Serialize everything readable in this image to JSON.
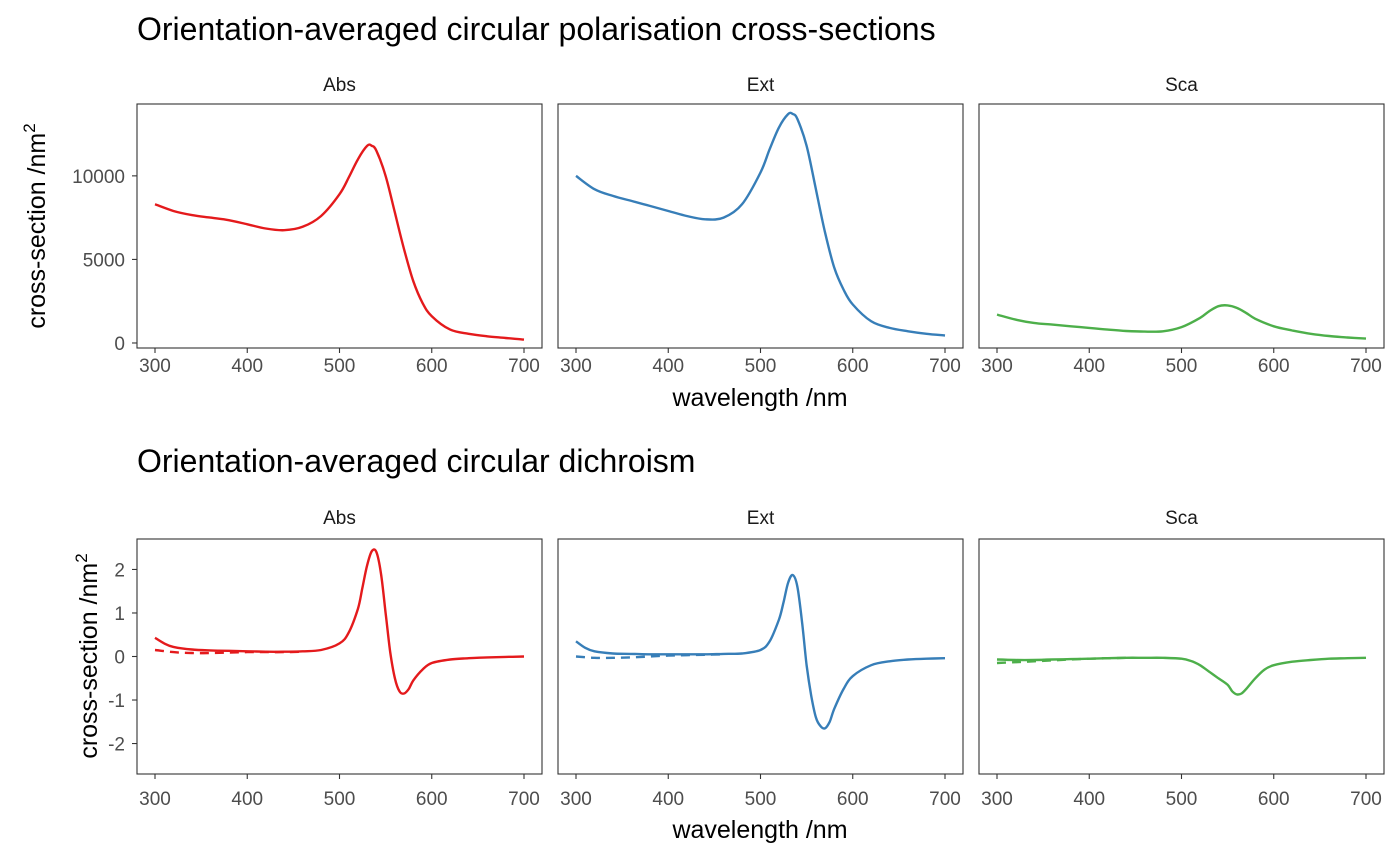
{
  "chart_data": [
    {
      "type": "line",
      "title": "Orientation-averaged circular polarisation cross-sections",
      "xlabel": "wavelength /nm",
      "ylabel": "cross-section /nm",
      "ylabel_sup": "2",
      "xlim": [
        300,
        700
      ],
      "ylim": [
        -300,
        14300
      ],
      "x_ticks": [
        300,
        400,
        500,
        600,
        700
      ],
      "y_ticks": [
        0,
        5000,
        10000
      ],
      "grid": false,
      "panels": [
        {
          "label": "Abs",
          "color": "#E41A1C",
          "series": [
            {
              "linetype": "solid",
              "x": [
                300,
                320,
                340,
                360,
                380,
                400,
                420,
                440,
                460,
                480,
                500,
                510,
                520,
                530,
                535,
                540,
                550,
                560,
                570,
                580,
                590,
                600,
                620,
                640,
                660,
                680,
                700
              ],
              "y": [
                8300,
                7900,
                7650,
                7500,
                7350,
                7100,
                6850,
                6750,
                6950,
                7600,
                8900,
                9900,
                11000,
                11800,
                11800,
                11500,
                10000,
                7800,
                5600,
                3700,
                2400,
                1600,
                800,
                550,
                400,
                300,
                200
              ]
            }
          ]
        },
        {
          "label": "Ext",
          "color": "#377EB8",
          "series": [
            {
              "linetype": "solid",
              "x": [
                300,
                320,
                340,
                360,
                380,
                400,
                420,
                440,
                460,
                480,
                500,
                510,
                520,
                530,
                535,
                540,
                550,
                560,
                570,
                580,
                590,
                600,
                620,
                640,
                660,
                680,
                700
              ],
              "y": [
                10000,
                9200,
                8800,
                8500,
                8200,
                7900,
                7600,
                7400,
                7500,
                8300,
                10200,
                11600,
                12900,
                13700,
                13700,
                13400,
                11800,
                9200,
                6600,
                4500,
                3200,
                2300,
                1300,
                900,
                700,
                550,
                450
              ]
            }
          ]
        },
        {
          "label": "Sca",
          "color": "#4DAF4A",
          "series": [
            {
              "linetype": "solid",
              "x": [
                300,
                320,
                340,
                360,
                380,
                400,
                420,
                440,
                460,
                480,
                500,
                520,
                530,
                540,
                550,
                560,
                570,
                580,
                600,
                620,
                640,
                660,
                680,
                700
              ],
              "y": [
                1700,
                1400,
                1200,
                1100,
                1000,
                900,
                800,
                720,
                680,
                700,
                950,
                1500,
                1900,
                2200,
                2250,
                2100,
                1800,
                1450,
                1000,
                750,
                550,
                420,
                330,
                260
              ]
            }
          ]
        }
      ]
    },
    {
      "type": "line",
      "title": "Orientation-averaged circular dichroism",
      "xlabel": "wavelength /nm",
      "ylabel": "cross-section /nm",
      "ylabel_sup": "2",
      "xlim": [
        300,
        700
      ],
      "ylim": [
        -2.7,
        2.7
      ],
      "x_ticks": [
        300,
        400,
        500,
        600,
        700
      ],
      "y_ticks": [
        -2,
        -1,
        0,
        1,
        2
      ],
      "grid": false,
      "panels": [
        {
          "label": "Abs",
          "color": "#E41A1C",
          "series": [
            {
              "linetype": "solid",
              "x": [
                300,
                310,
                320,
                340,
                360,
                380,
                400,
                420,
                440,
                460,
                480,
                500,
                510,
                520,
                525,
                530,
                535,
                540,
                545,
                550,
                555,
                560,
                565,
                570,
                575,
                580,
                590,
                600,
                620,
                640,
                660,
                680,
                700
              ],
              "y": [
                0.43,
                0.3,
                0.22,
                0.16,
                0.14,
                0.13,
                0.12,
                0.11,
                0.11,
                0.12,
                0.15,
                0.3,
                0.55,
                1.1,
                1.6,
                2.1,
                2.42,
                2.4,
                1.9,
                1.0,
                0.1,
                -0.5,
                -0.8,
                -0.85,
                -0.75,
                -0.55,
                -0.3,
                -0.15,
                -0.07,
                -0.04,
                -0.02,
                -0.01,
                0
              ]
            },
            {
              "linetype": "dashed",
              "x": [
                300,
                320,
                340,
                360,
                380,
                400,
                420,
                440,
                460
              ],
              "y": [
                0.15,
                0.1,
                0.08,
                0.08,
                0.09,
                0.1,
                0.1,
                0.1,
                0.11
              ]
            }
          ]
        },
        {
          "label": "Ext",
          "color": "#377EB8",
          "series": [
            {
              "linetype": "solid",
              "x": [
                300,
                310,
                320,
                340,
                360,
                380,
                400,
                420,
                440,
                460,
                480,
                500,
                510,
                520,
                525,
                530,
                535,
                540,
                545,
                550,
                555,
                560,
                565,
                570,
                575,
                580,
                590,
                600,
                620,
                640,
                660,
                680,
                700
              ],
              "y": [
                0.35,
                0.2,
                0.12,
                0.07,
                0.06,
                0.05,
                0.05,
                0.05,
                0.05,
                0.06,
                0.07,
                0.15,
                0.35,
                0.85,
                1.25,
                1.7,
                1.87,
                1.6,
                0.8,
                -0.2,
                -0.9,
                -1.4,
                -1.6,
                -1.65,
                -1.5,
                -1.2,
                -0.75,
                -0.45,
                -0.2,
                -0.11,
                -0.07,
                -0.05,
                -0.04
              ]
            },
            {
              "linetype": "dashed",
              "x": [
                300,
                320,
                340,
                360,
                380,
                400,
                420,
                440,
                460
              ],
              "y": [
                0,
                -0.03,
                -0.03,
                -0.02,
                0,
                0.02,
                0.03,
                0.04,
                0.05
              ]
            }
          ]
        },
        {
          "label": "Sca",
          "color": "#4DAF4A",
          "series": [
            {
              "linetype": "solid",
              "x": [
                300,
                320,
                340,
                360,
                380,
                400,
                420,
                440,
                460,
                480,
                500,
                510,
                520,
                530,
                540,
                550,
                555,
                560,
                565,
                570,
                580,
                590,
                600,
                620,
                640,
                660,
                680,
                700
              ],
              "y": [
                -0.07,
                -0.08,
                -0.08,
                -0.07,
                -0.06,
                -0.05,
                -0.04,
                -0.03,
                -0.03,
                -0.03,
                -0.05,
                -0.1,
                -0.2,
                -0.35,
                -0.5,
                -0.65,
                -0.8,
                -0.87,
                -0.85,
                -0.75,
                -0.5,
                -0.3,
                -0.2,
                -0.12,
                -0.08,
                -0.05,
                -0.04,
                -0.03
              ]
            },
            {
              "linetype": "dashed",
              "x": [
                300,
                320,
                340,
                360,
                380,
                400,
                420,
                440
              ],
              "y": [
                -0.15,
                -0.13,
                -0.11,
                -0.09,
                -0.07,
                -0.05,
                -0.04,
                -0.03
              ]
            }
          ]
        }
      ]
    }
  ]
}
